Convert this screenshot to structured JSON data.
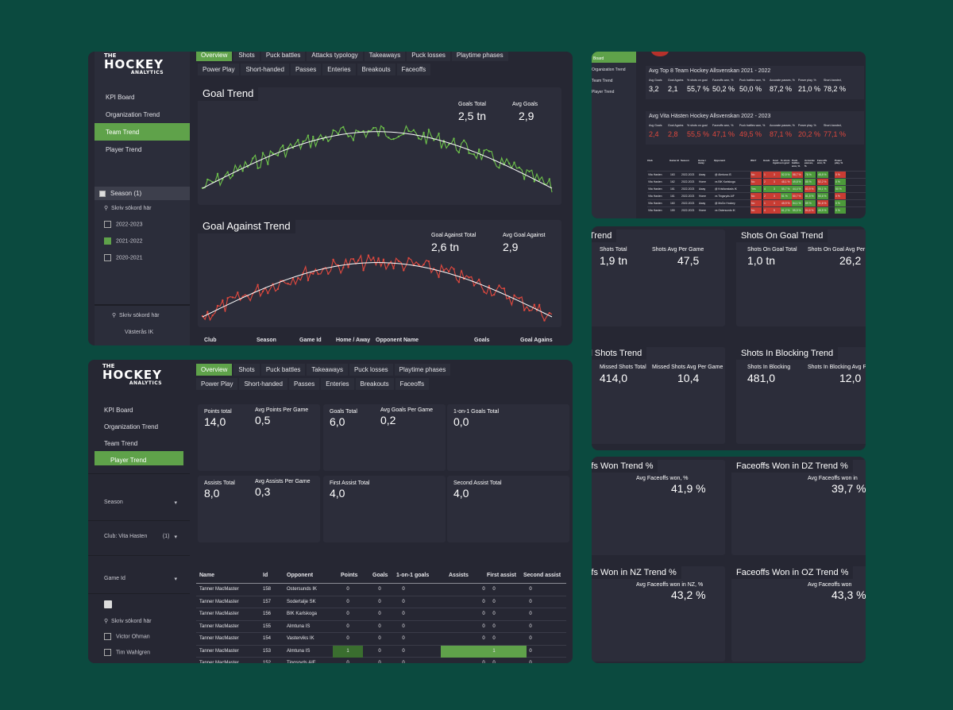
{
  "colors": {
    "background": "#0b4a3f",
    "card": "#262733",
    "accent": "#5fa24a",
    "red": "#e0483e"
  },
  "logo": {
    "the": "THE",
    "main": "HOCKEY",
    "sub": "ANALYTICS"
  },
  "team_dash": {
    "tabs_row1": [
      "Overview",
      "Shots",
      "Puck battles",
      "Attacks typology",
      "Takeaways",
      "Puck losses",
      "Playtime phases"
    ],
    "tabs_row2": [
      "Power Play",
      "Short-handed",
      "Passes",
      "Enteries",
      "Breakouts",
      "Faceoffs"
    ],
    "nav": [
      "KPI Board",
      "Organization Trend",
      "Team Trend",
      "Player Trend"
    ],
    "season_filter": {
      "label": "Season (1)",
      "search": "Skriv sökord här",
      "options": [
        "2022-2023",
        "2021-2022",
        "2020-2021"
      ]
    },
    "club_search": "Skriv sökord här",
    "club_option": "Västerås IK",
    "goal_trend": {
      "title": "Goal Trend",
      "kpi1_label": "Goals Total",
      "kpi1_value": "2,5 tn",
      "kpi2_label": "Avg Goals",
      "kpi2_value": "2,9"
    },
    "goal_against": {
      "title": "Goal Against Trend",
      "kpi1_label": "Goal Against Total",
      "kpi1_value": "2,6 tn",
      "kpi2_label": "Avg Goal Against",
      "kpi2_value": "2,9"
    },
    "table_headers": [
      "Club",
      "Season",
      "Game Id",
      "Home / Away",
      "Opponent Name",
      "Goals",
      "Goal Agains"
    ]
  },
  "kpi_board": {
    "nav": [
      "Board",
      "Organization Trend",
      "Team Trend",
      "Player Trend"
    ],
    "top8": {
      "title": "Avg Top 8 Team Hockey Allsvenskan 2021 - 2022",
      "labels": [
        "Avg Goals",
        "Goal Agains",
        "% shots on goal",
        "Faceoffs won, %",
        "Puck battles won, %",
        "Accurate passes, %",
        "Power play, %",
        "Short-handed,"
      ],
      "values": [
        "3,2",
        "2,1",
        "55,7 %",
        "50,2 %",
        "50,0 %",
        "87,2 %",
        "21,0 %",
        "78,2 %"
      ]
    },
    "vita": {
      "title": "Avg Vita Hästen Hockey Allsvenskan 2022 - 2023",
      "labels": [
        "Avg Goals",
        "Goal Agains",
        "% shots on goal",
        "Faceoffs won, %",
        "Puck battles won, %",
        "Accurate passes, %",
        "Power play, %",
        "Short-handed,"
      ],
      "values": [
        "2,4",
        "2,8",
        "55,5 %",
        "47,1 %",
        "49,5 %",
        "87,1 %",
        "20,2 %",
        "77,1 %"
      ]
    },
    "table_headers": [
      "Club",
      "Game Id",
      "Season",
      "Home / Away",
      "Opponent",
      "Win?",
      "Goals",
      "Goal Agains",
      "% shots on goal",
      "Puck battles won, %",
      "Accurate passes, %",
      "Faceoffs won, %",
      "Power play, %"
    ],
    "rows": [
      [
        "Vita Hasten",
        "163",
        "2022-2023",
        "Away",
        "@ Almtuna IS",
        "No",
        "1",
        "3",
        "52,5 %",
        "58,7 %",
        "78 %",
        "48,8 %",
        "0 %"
      ],
      [
        "Vita Hasten",
        "162",
        "2022-2023",
        "Home",
        "vs BIK Karlskoga",
        "No",
        "2",
        "3",
        "48,1 %",
        "49,8 %",
        "85 %",
        "52,2 %",
        "0 %"
      ],
      [
        "Vita Hasten",
        "161",
        "2022-2023",
        "Away",
        "@ Kristianstads IK",
        "Yes",
        "4",
        "3",
        "55,7 %",
        "44,4 %",
        "83,9 %",
        "55,1 %",
        "50 %"
      ],
      [
        "Vita Hasten",
        "161",
        "2022-2023",
        "Home",
        "vs Tingsryds AIF",
        "No",
        "2",
        "3",
        "51 %",
        "50,7 %",
        "81,5 %",
        "55,6 %",
        "0 %"
      ],
      [
        "Vita Hasten",
        "160",
        "2022-2023",
        "Away",
        "@ MoDo Hockey",
        "No",
        "1",
        "3",
        "45,9 %",
        "54,1 %",
        "89 %",
        "51,6 %",
        "0 %"
      ],
      [
        "Vita Hasten",
        "159",
        "2022-2023",
        "Home",
        "vs Ostersunds IK",
        "No",
        "4",
        "5",
        "61,2 %",
        "55,5 %",
        "84,6 %",
        "45,5 %",
        "0 %"
      ]
    ]
  },
  "player_dash": {
    "nav": [
      "KPI Board",
      "Organization Trend",
      "Team Trend",
      "Player Trend"
    ],
    "tabs_row1": [
      "Overview",
      "Shots",
      "Puck battles",
      "Takeaways",
      "Puck losses",
      "Playtime phases"
    ],
    "tabs_row2": [
      "Power Play",
      "Short-handed",
      "Passes",
      "Enteries",
      "Breakouts",
      "Faceoffs"
    ],
    "filters": {
      "season": "Season",
      "club": "Club: Vita Hasten",
      "club_count": "(1)",
      "game": "Game Id",
      "search": "Skriv sökord här",
      "players": [
        "Victor Ohman",
        "Tim Wahlgren"
      ]
    },
    "kpis": [
      {
        "label": "Points total",
        "value": "14,0",
        "label2": "Avg Points Per Game",
        "value2": "0,5"
      },
      {
        "label": "Goals Total",
        "value": "6,0",
        "label2": "Avg Goals Per Game",
        "value2": "0,2"
      },
      {
        "label": "1-on-1 Goals Total",
        "value": "0,0",
        "label2": "",
        "value2": ""
      },
      {
        "label": "Assists Total",
        "value": "8,0",
        "label2": "Avg Assists Per Game",
        "value2": "0,3"
      },
      {
        "label": "First Assist Total",
        "value": "4,0",
        "label2": "",
        "value2": ""
      },
      {
        "label": "Second Assist Total",
        "value": "4,0",
        "label2": "",
        "value2": ""
      }
    ],
    "table_headers": [
      "Name",
      "Id",
      "Opponent",
      "Points",
      "Goals",
      "1-on-1 goals",
      "Assists",
      "First assist",
      "Second assist"
    ],
    "rows": [
      [
        "Tanner MacMaster",
        "158",
        "Ostersunds IK",
        "0",
        "0",
        "0",
        "0",
        "0",
        "0"
      ],
      [
        "Tanner MacMaster",
        "157",
        "Sodertalje SK",
        "0",
        "0",
        "0",
        "0",
        "0",
        "0"
      ],
      [
        "Tanner MacMaster",
        "156",
        "BIK Karlskoga",
        "0",
        "0",
        "0",
        "0",
        "0",
        "0"
      ],
      [
        "Tanner MacMaster",
        "155",
        "Almtuna IS",
        "0",
        "0",
        "0",
        "0",
        "0",
        "0"
      ],
      [
        "Tanner MacMaster",
        "154",
        "Vasterviks IK",
        "0",
        "0",
        "0",
        "0",
        "0",
        "0"
      ],
      [
        "Tanner MacMaster",
        "153",
        "Almtuna IS",
        "1",
        "0",
        "0",
        "1",
        "1",
        "0"
      ],
      [
        "Tanner MacMaster",
        "152",
        "Tingsryds AIF",
        "0",
        "0",
        "0",
        "0",
        "0",
        "0"
      ]
    ]
  },
  "shots": [
    {
      "title": "Shots Trend",
      "k1": "Shots Total",
      "v1": "1,9 tn",
      "k2": "Shots Avg Per Game",
      "v2": "47,5",
      "color": "green"
    },
    {
      "title": "Shots On Goal Trend",
      "k1": "Shots On Goal Total",
      "v1": "1,0 tn",
      "k2": "Shots On Goal Avg Per G",
      "v2": "26,2",
      "color": "green"
    },
    {
      "title": "Missed Shots Trend",
      "k1": "Missed Shots Total",
      "v1": "414,0",
      "k2": "Missed Shots Avg Per Game",
      "v2": "10,4",
      "color": "red"
    },
    {
      "title": "Shots In Blocking Trend",
      "k1": "Shots In Blocking",
      "v1": "481,0",
      "k2": "Shots In Blocking Avg Per G",
      "v2": "12,0",
      "color": "red"
    }
  ],
  "faceoffs": [
    {
      "title": "Faceoffs Won Trend %",
      "k1": "Avg Faceoffs won, %",
      "v1": "41,9 %"
    },
    {
      "title": "Faceoffs Won in DZ Trend %",
      "k1": "Avg Faceoffs won in",
      "v1": "39,7 %"
    },
    {
      "title": "Faceoffs Won in NZ Trend %",
      "k1": "Avg Faceoffs won in NZ, %",
      "v1": "43,2 %"
    },
    {
      "title": "Faceoffs Won in OZ Trend %",
      "k1": "Avg Faceoffs won",
      "v1": "43,3 %"
    }
  ]
}
